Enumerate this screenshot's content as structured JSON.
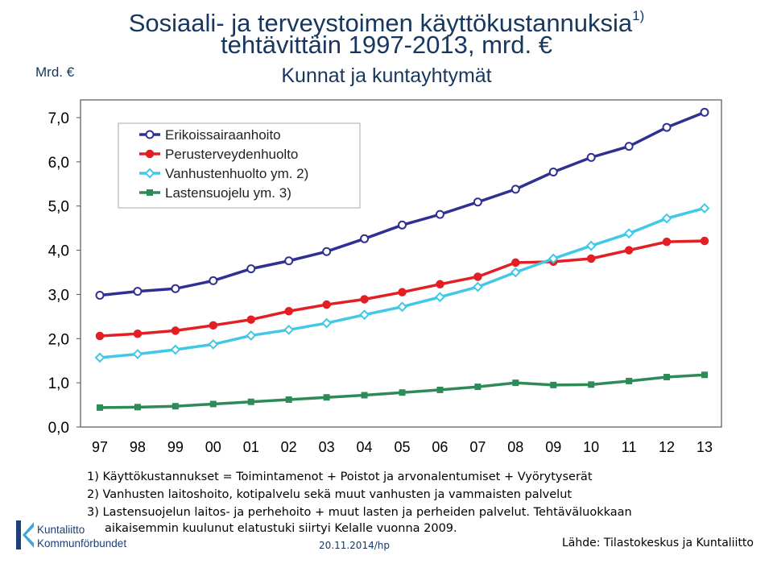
{
  "header": {
    "title_line1": "Sosiaali- ja terveystoimen käyttökustannuksia",
    "title_sup": "1)",
    "title_line2": "tehtävittäin 1997-2013, mrd. €",
    "subtitle": "Kunnat ja kuntayhtymät",
    "unit_label": "Mrd. €"
  },
  "chart_data": {
    "type": "line",
    "categories": [
      "97",
      "98",
      "99",
      "00",
      "01",
      "02",
      "03",
      "04",
      "05",
      "06",
      "07",
      "08",
      "09",
      "10",
      "11",
      "12",
      "13"
    ],
    "ylim": [
      0,
      7
    ],
    "yticks": [
      "0,0",
      "1,0",
      "2,0",
      "3,0",
      "4,0",
      "5,0",
      "6,0",
      "7,0"
    ],
    "grid": false,
    "legend_position": "top-left",
    "series": [
      {
        "name": "Erikoissairaanhoito",
        "color": "#2e3192",
        "marker": "circle",
        "values": [
          2.98,
          3.07,
          3.13,
          3.31,
          3.58,
          3.76,
          3.97,
          4.26,
          4.57,
          4.81,
          5.09,
          5.38,
          5.77,
          6.1,
          6.35,
          6.78,
          7.12
        ]
      },
      {
        "name": "Perusterveydenhuolto",
        "color": "#e31e24",
        "marker": "circle-filled",
        "values": [
          2.06,
          2.11,
          2.18,
          2.3,
          2.43,
          2.62,
          2.77,
          2.89,
          3.05,
          3.23,
          3.4,
          3.72,
          3.74,
          3.81,
          4.0,
          4.19,
          4.21
        ]
      },
      {
        "name": "Vanhustenhuolto ym. 2)",
        "color": "#41c8e6",
        "marker": "diamond",
        "values": [
          1.57,
          1.65,
          1.75,
          1.87,
          2.07,
          2.2,
          2.35,
          2.54,
          2.72,
          2.94,
          3.17,
          3.5,
          3.81,
          4.1,
          4.38,
          4.72,
          4.95
        ]
      },
      {
        "name": "Lastensuojelu ym. 3)",
        "color": "#2e8b57",
        "marker": "square",
        "values": [
          0.44,
          0.45,
          0.47,
          0.52,
          0.57,
          0.62,
          0.67,
          0.72,
          0.78,
          0.84,
          0.91,
          1.0,
          0.95,
          0.96,
          1.04,
          1.13,
          1.18
        ]
      }
    ]
  },
  "footnotes": [
    "1) Käyttökustannukset = Toimintamenot + Poistot ja arvonalentumiset + Vyörytyserät",
    "2) Vanhusten laitoshoito, kotipalvelu sekä muut vanhusten ja vammaisten palvelut",
    "3) Lastensuojelun laitos- ja perhehoito + muut lasten ja perheiden palvelut. Tehtäväluokkaan",
    "aikaisemmin kuulunut elatustuki siirtyi Kelalle vuonna 2009."
  ],
  "footer": {
    "logo_line1": "Kuntaliitto",
    "logo_line2": "Kommunförbundet",
    "date": "20.11.2014/hp",
    "source": "Lähde: Tilastokeskus ja Kuntaliitto"
  }
}
